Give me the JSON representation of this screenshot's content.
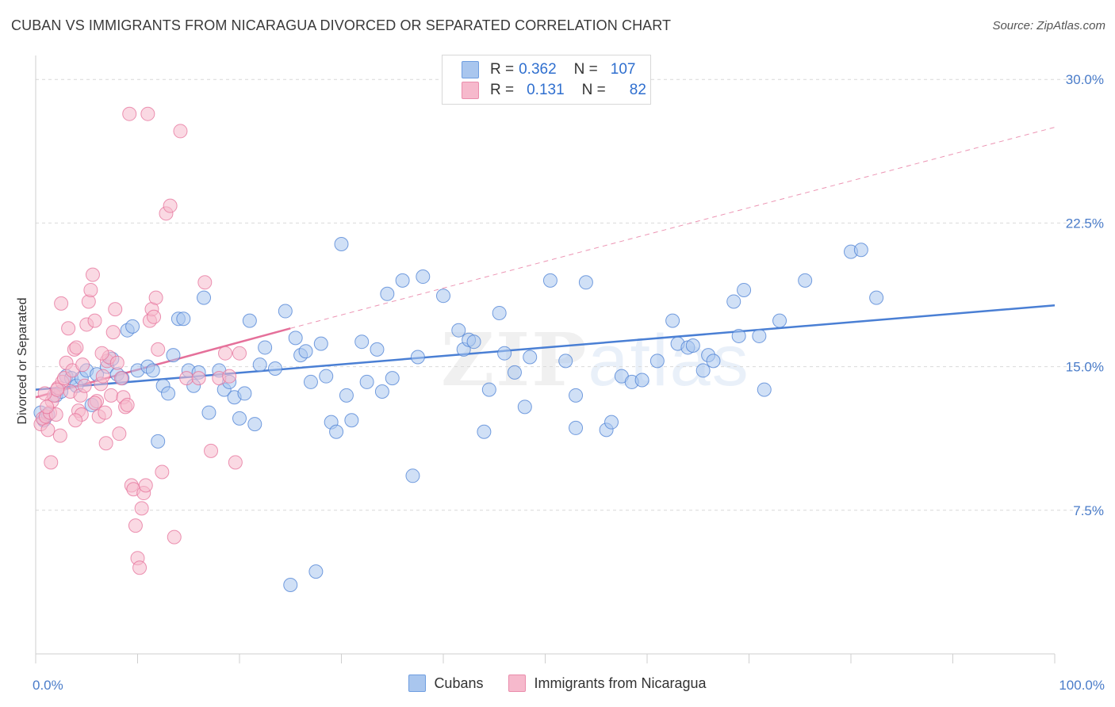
{
  "header": {
    "title": "CUBAN VS IMMIGRANTS FROM NICARAGUA DIVORCED OR SEPARATED CORRELATION CHART",
    "source": "Source: ZipAtlas.com"
  },
  "watermark": {
    "zip": "ZIP",
    "atlas": "atlas"
  },
  "legend": {
    "rows": [
      {
        "r_label": "R =",
        "r_value": "0.362",
        "n_label": "N =",
        "n_value": "107",
        "color": "#a9c6ee"
      },
      {
        "r_label": "R =",
        "r_value": "0.131",
        "n_label": "N =",
        "n_value": "82",
        "color": "#f6b9cc"
      }
    ]
  },
  "bottom_legend": [
    {
      "label": "Cubans",
      "color": "#a9c6ee"
    },
    {
      "label": "Immigrants from Nicaragua",
      "color": "#f6b9cc"
    }
  ],
  "chart_data": {
    "type": "scatter",
    "title": "CUBAN VS IMMIGRANTS FROM NICARAGUA DIVORCED OR SEPARATED CORRELATION CHART",
    "xlabel": "",
    "ylabel": "Divorced or Separated",
    "xlim": [
      0,
      100
    ],
    "ylim": [
      0,
      31.25
    ],
    "x_tick_labels": [
      "0.0%",
      "100.0%"
    ],
    "y_ticks": [
      7.5,
      15.0,
      22.5,
      30.0
    ],
    "y_tick_labels": [
      "7.5%",
      "15.0%",
      "22.5%",
      "30.0%"
    ],
    "grid": true,
    "legend_position": "top-center",
    "series": [
      {
        "name": "Cubans",
        "color": "#4a7fd4",
        "fill": "#a9c6ee",
        "trend": {
          "x": [
            0,
            100
          ],
          "y": [
            13.8,
            18.2
          ]
        },
        "points": [
          [
            0.5,
            12.6
          ],
          [
            0.8,
            12.2
          ],
          [
            1.2,
            12.5
          ],
          [
            2.0,
            13.5
          ],
          [
            2.5,
            13.7
          ],
          [
            3.0,
            14.5
          ],
          [
            3.5,
            14.4
          ],
          [
            4.0,
            14.0
          ],
          [
            4.5,
            14.4
          ],
          [
            5.0,
            14.8
          ],
          [
            5.5,
            13.0
          ],
          [
            6.0,
            14.6
          ],
          [
            7.0,
            15.0
          ],
          [
            7.5,
            15.4
          ],
          [
            8.0,
            14.6
          ],
          [
            8.5,
            14.4
          ],
          [
            9.0,
            16.9
          ],
          [
            9.5,
            17.1
          ],
          [
            10.0,
            14.8
          ],
          [
            11.0,
            15.0
          ],
          [
            11.5,
            14.8
          ],
          [
            12.0,
            11.1
          ],
          [
            12.5,
            14.0
          ],
          [
            13.0,
            13.6
          ],
          [
            13.5,
            15.6
          ],
          [
            14.0,
            17.5
          ],
          [
            14.5,
            17.5
          ],
          [
            15.0,
            14.8
          ],
          [
            15.5,
            14.0
          ],
          [
            16.0,
            14.7
          ],
          [
            16.5,
            18.6
          ],
          [
            17.0,
            12.6
          ],
          [
            18.0,
            14.8
          ],
          [
            18.5,
            13.8
          ],
          [
            19.0,
            14.2
          ],
          [
            19.5,
            13.4
          ],
          [
            20.0,
            12.3
          ],
          [
            20.5,
            13.6
          ],
          [
            21.0,
            17.4
          ],
          [
            21.5,
            12.0
          ],
          [
            22.0,
            15.1
          ],
          [
            22.5,
            16.0
          ],
          [
            23.5,
            14.9
          ],
          [
            24.5,
            17.9
          ],
          [
            25.0,
            3.6
          ],
          [
            25.5,
            16.5
          ],
          [
            26.0,
            15.6
          ],
          [
            26.5,
            15.8
          ],
          [
            27.0,
            14.2
          ],
          [
            27.5,
            4.3
          ],
          [
            28.0,
            16.2
          ],
          [
            28.5,
            14.5
          ],
          [
            29.0,
            12.1
          ],
          [
            29.5,
            11.6
          ],
          [
            30.0,
            21.4
          ],
          [
            30.5,
            13.5
          ],
          [
            31.0,
            12.2
          ],
          [
            32.0,
            16.3
          ],
          [
            32.5,
            14.2
          ],
          [
            33.5,
            15.9
          ],
          [
            34.0,
            13.7
          ],
          [
            34.5,
            18.8
          ],
          [
            35.0,
            14.4
          ],
          [
            36.0,
            19.5
          ],
          [
            37.0,
            9.3
          ],
          [
            37.5,
            15.5
          ],
          [
            38.0,
            19.7
          ],
          [
            40.0,
            18.7
          ],
          [
            41.5,
            16.9
          ],
          [
            42.0,
            15.9
          ],
          [
            42.5,
            16.4
          ],
          [
            43.0,
            16.3
          ],
          [
            44.0,
            11.6
          ],
          [
            44.5,
            13.8
          ],
          [
            45.5,
            17.8
          ],
          [
            46.0,
            15.7
          ],
          [
            47.0,
            14.7
          ],
          [
            48.5,
            15.5
          ],
          [
            50.5,
            19.5
          ],
          [
            52.0,
            15.3
          ],
          [
            53.0,
            11.8
          ],
          [
            54.0,
            19.4
          ],
          [
            56.0,
            11.7
          ],
          [
            56.5,
            12.1
          ],
          [
            57.5,
            14.5
          ],
          [
            58.5,
            14.2
          ],
          [
            59.5,
            14.3
          ],
          [
            61.0,
            15.3
          ],
          [
            62.5,
            17.4
          ],
          [
            63.0,
            16.2
          ],
          [
            64.0,
            16.0
          ],
          [
            64.5,
            16.1
          ],
          [
            65.5,
            14.8
          ],
          [
            66.0,
            15.6
          ],
          [
            66.5,
            15.3
          ],
          [
            68.5,
            18.4
          ],
          [
            69.0,
            16.6
          ],
          [
            69.5,
            19.0
          ],
          [
            71.0,
            16.6
          ],
          [
            71.5,
            13.8
          ],
          [
            73.0,
            17.4
          ],
          [
            75.5,
            19.5
          ],
          [
            80.0,
            21.0
          ],
          [
            81.0,
            21.1
          ],
          [
            82.5,
            18.6
          ],
          [
            53.0,
            13.5
          ],
          [
            48.0,
            12.9
          ]
        ]
      },
      {
        "name": "Immigrants from Nicaragua",
        "color": "#e5709a",
        "fill": "#f6b9cc",
        "trend": {
          "x": [
            0,
            25
          ],
          "y": [
            13.4,
            17.0
          ]
        },
        "trend_extension": {
          "x": [
            25,
            100
          ],
          "y": [
            17.0,
            27.5
          ]
        },
        "points": [
          [
            0.5,
            12.0
          ],
          [
            0.7,
            12.3
          ],
          [
            1.0,
            12.4
          ],
          [
            1.2,
            11.7
          ],
          [
            1.4,
            12.6
          ],
          [
            1.6,
            13.2
          ],
          [
            1.8,
            13.5
          ],
          [
            2.0,
            12.5
          ],
          [
            2.2,
            13.9
          ],
          [
            2.4,
            11.4
          ],
          [
            2.6,
            14.2
          ],
          [
            2.8,
            14.4
          ],
          [
            3.0,
            15.2
          ],
          [
            3.2,
            17.0
          ],
          [
            3.4,
            13.7
          ],
          [
            3.6,
            14.8
          ],
          [
            3.8,
            15.9
          ],
          [
            4.0,
            16.0
          ],
          [
            4.2,
            12.7
          ],
          [
            4.4,
            13.5
          ],
          [
            4.6,
            15.1
          ],
          [
            4.8,
            14.0
          ],
          [
            5.0,
            17.2
          ],
          [
            5.2,
            18.4
          ],
          [
            5.4,
            19.0
          ],
          [
            5.6,
            19.8
          ],
          [
            5.8,
            17.4
          ],
          [
            6.0,
            13.2
          ],
          [
            6.2,
            12.4
          ],
          [
            6.4,
            14.1
          ],
          [
            6.6,
            14.5
          ],
          [
            6.8,
            12.6
          ],
          [
            7.0,
            15.3
          ],
          [
            7.2,
            15.5
          ],
          [
            7.4,
            13.5
          ],
          [
            7.6,
            16.8
          ],
          [
            7.8,
            18.0
          ],
          [
            8.0,
            15.2
          ],
          [
            8.2,
            11.5
          ],
          [
            8.4,
            14.4
          ],
          [
            8.6,
            13.4
          ],
          [
            8.8,
            12.9
          ],
          [
            9.0,
            13.0
          ],
          [
            9.2,
            28.2
          ],
          [
            9.4,
            8.8
          ],
          [
            9.6,
            8.6
          ],
          [
            9.8,
            6.7
          ],
          [
            10.0,
            5.0
          ],
          [
            10.2,
            4.5
          ],
          [
            10.4,
            7.6
          ],
          [
            10.6,
            8.4
          ],
          [
            10.8,
            8.8
          ],
          [
            11.0,
            28.2
          ],
          [
            11.2,
            17.4
          ],
          [
            11.4,
            18.0
          ],
          [
            11.6,
            17.6
          ],
          [
            11.8,
            18.6
          ],
          [
            12.0,
            15.9
          ],
          [
            12.4,
            9.5
          ],
          [
            12.8,
            23.0
          ],
          [
            13.2,
            23.4
          ],
          [
            13.6,
            6.1
          ],
          [
            14.2,
            27.3
          ],
          [
            14.8,
            14.4
          ],
          [
            16.0,
            14.4
          ],
          [
            16.6,
            19.4
          ],
          [
            17.2,
            10.6
          ],
          [
            18.0,
            14.4
          ],
          [
            18.6,
            15.7
          ],
          [
            19.0,
            14.5
          ],
          [
            19.6,
            10.0
          ],
          [
            20.0,
            15.7
          ],
          [
            1.5,
            10.0
          ],
          [
            2.5,
            18.3
          ],
          [
            4.5,
            12.5
          ],
          [
            5.8,
            13.1
          ],
          [
            6.9,
            11.0
          ],
          [
            3.9,
            12.2
          ],
          [
            2.1,
            13.8
          ],
          [
            1.1,
            12.9
          ],
          [
            0.9,
            13.6
          ],
          [
            6.5,
            15.7
          ]
        ]
      }
    ]
  }
}
